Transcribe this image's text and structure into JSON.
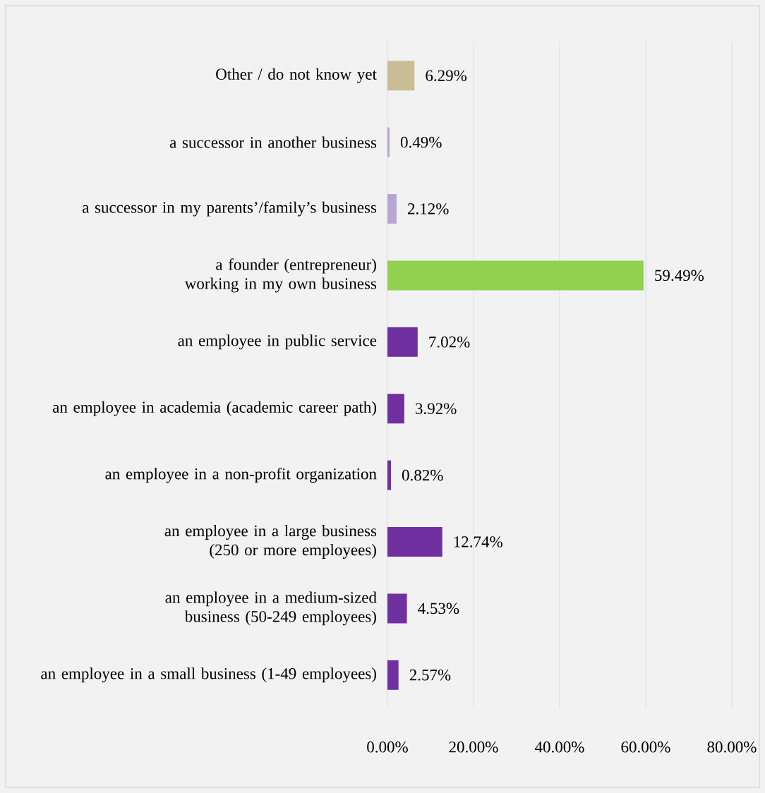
{
  "chart_data": {
    "type": "bar",
    "orientation": "horizontal",
    "categories": [
      "Other / do not know yet",
      "a successor in another business",
      "a successor in my parents’/family’s business",
      "a founder (entrepreneur) working in my own business",
      "an employee in public service",
      "an employee in academia (academic career path)",
      "an employee in a non-profit organization",
      "an employee in a large business (250 or more employees)",
      "an employee in a medium-sized business (50-249 employees)",
      "an employee in a small business (1-49 employees)"
    ],
    "values": [
      6.29,
      0.49,
      2.12,
      59.49,
      7.02,
      3.92,
      0.82,
      12.74,
      4.53,
      2.57
    ],
    "value_labels": [
      "6.29%",
      "0.49%",
      "2.12%",
      "59.49%",
      "7.02%",
      "3.92%",
      "0.82%",
      "12.74%",
      "4.53%",
      "2.57%"
    ],
    "colors": [
      "#c9bd96",
      "#b7a6d3",
      "#b7a6d3",
      "#92d050",
      "#7030a0",
      "#7030a0",
      "#7030a0",
      "#7030a0",
      "#7030a0",
      "#7030a0"
    ],
    "xlim": [
      0,
      80
    ],
    "xticks": [
      {
        "value": 0,
        "label": "0.00%"
      },
      {
        "value": 20,
        "label": "20.00%"
      },
      {
        "value": 40,
        "label": "40.00%"
      },
      {
        "value": 60,
        "label": "60.00%"
      },
      {
        "value": 80,
        "label": "80.00%"
      }
    ],
    "grid": "x"
  }
}
